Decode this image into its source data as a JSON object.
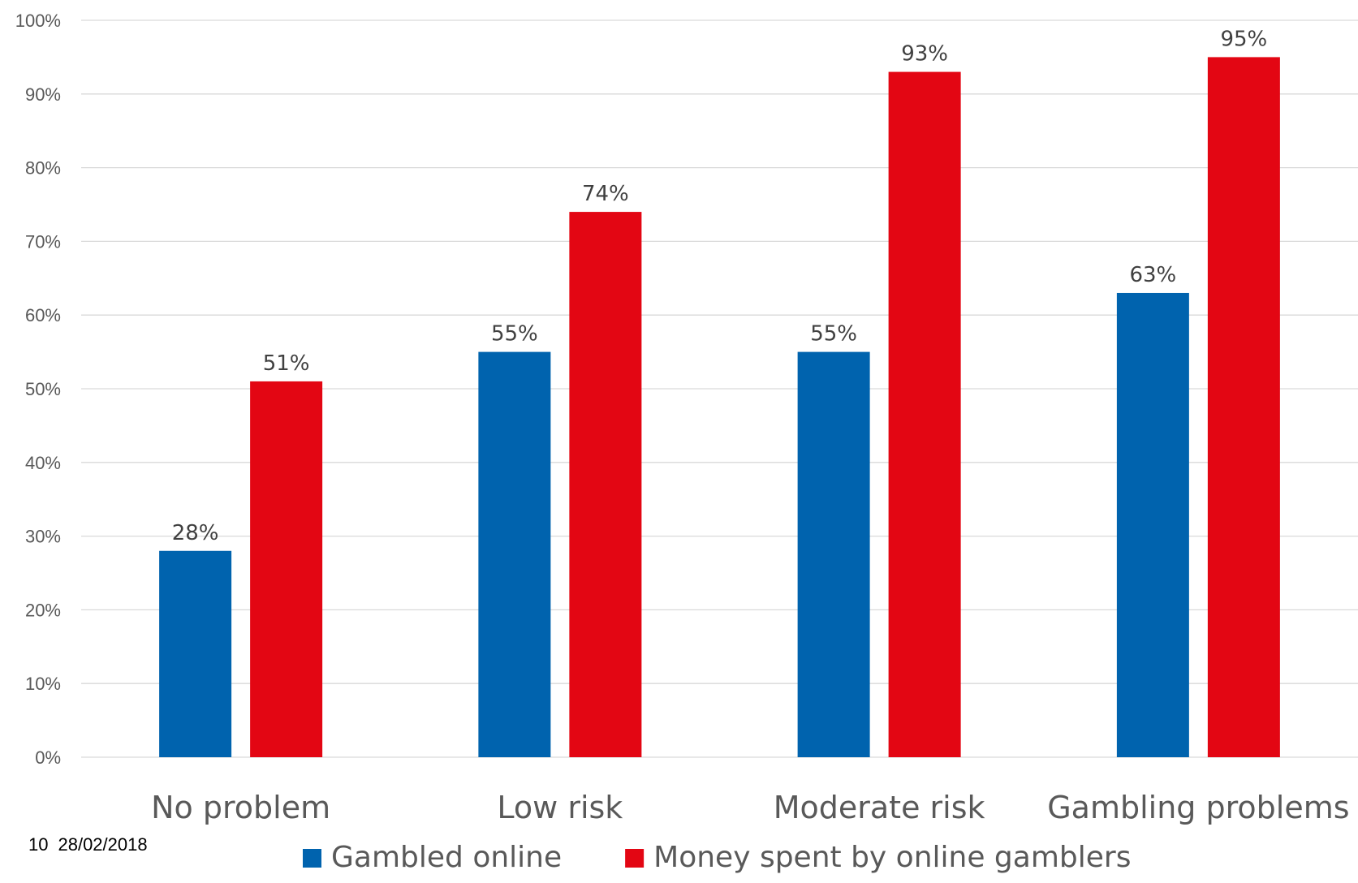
{
  "footer": {
    "slide_number": "10",
    "date": "28/02/2018"
  },
  "chart_data": {
    "type": "bar",
    "categories": [
      "No problem",
      "Low risk",
      "Moderate risk",
      "Gambling problems"
    ],
    "series": [
      {
        "name": "Gambled online",
        "color": "#0063AE",
        "values": [
          28,
          55,
          55,
          63
        ],
        "labels": [
          "28%",
          "55%",
          "55%",
          "63%"
        ]
      },
      {
        "name": "Money spent by online gamblers",
        "color": "#E30613",
        "values": [
          51,
          74,
          93,
          95
        ],
        "labels": [
          "51%",
          "74%",
          "93%",
          "95%"
        ]
      }
    ],
    "yticks": [
      "0%",
      "10%",
      "20%",
      "30%",
      "40%",
      "50%",
      "60%",
      "70%",
      "80%",
      "90%",
      "100%"
    ],
    "ylim": [
      0,
      100
    ],
    "grid": true,
    "legend": "bottom"
  }
}
